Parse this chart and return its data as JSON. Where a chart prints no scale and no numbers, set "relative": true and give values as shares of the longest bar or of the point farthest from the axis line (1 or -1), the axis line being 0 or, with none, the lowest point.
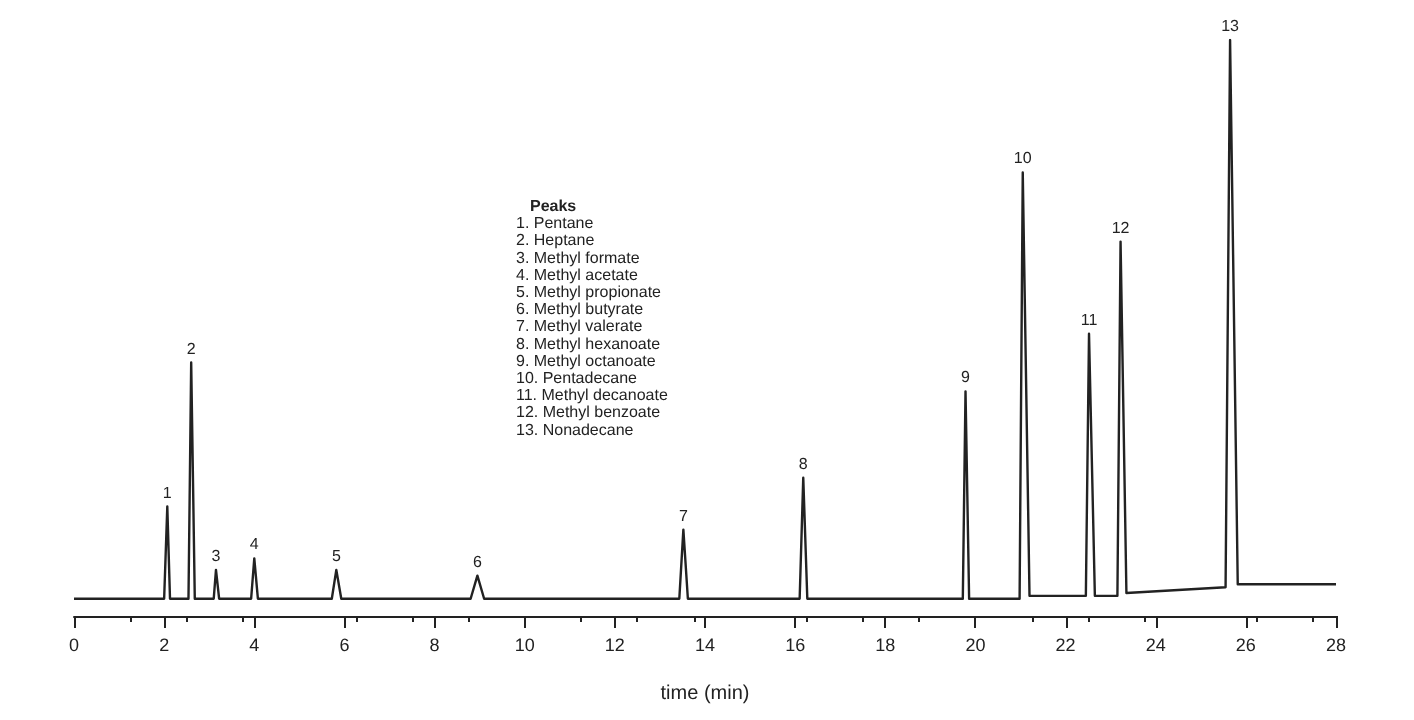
{
  "chart_data": {
    "type": "line",
    "relative": true,
    "xlabel": "time (min)",
    "xlim": [
      0,
      28
    ],
    "xticks": [
      0,
      2,
      4,
      6,
      8,
      10,
      12,
      14,
      16,
      18,
      20,
      22,
      24,
      26,
      28
    ],
    "grid": false,
    "marker": "none",
    "line_style": "solid",
    "series": [
      {
        "color": "#222222",
        "x": [
          0,
          2.0,
          2.07,
          2.13,
          2.54,
          2.6,
          2.68,
          3.1,
          3.15,
          3.22,
          3.93,
          4.0,
          4.08,
          5.72,
          5.82,
          5.93,
          8.8,
          8.95,
          9.1,
          13.43,
          13.52,
          13.62,
          16.1,
          16.18,
          16.27,
          19.72,
          19.78,
          19.86,
          20.98,
          21.05,
          21.2,
          22.45,
          22.52,
          22.65,
          23.15,
          23.22,
          23.35,
          25.55,
          25.65,
          25.82,
          28
        ],
        "values": [
          0.03,
          0.03,
          0.19,
          0.03,
          0.03,
          0.44,
          0.03,
          0.03,
          0.08,
          0.03,
          0.03,
          0.1,
          0.03,
          0.03,
          0.08,
          0.03,
          0.03,
          0.07,
          0.03,
          0.03,
          0.15,
          0.03,
          0.03,
          0.24,
          0.03,
          0.03,
          0.39,
          0.03,
          0.03,
          0.77,
          0.035,
          0.035,
          0.49,
          0.035,
          0.035,
          0.65,
          0.04,
          0.05,
          1,
          0.055,
          0.055
        ]
      }
    ],
    "annotations": [
      {
        "text": "1",
        "x": 2.07,
        "y": 0.19
      },
      {
        "text": "2",
        "x": 2.6,
        "y": 0.44
      },
      {
        "text": "3",
        "x": 3.15,
        "y": 0.08
      },
      {
        "text": "4",
        "x": 4.0,
        "y": 0.1
      },
      {
        "text": "5",
        "x": 5.82,
        "y": 0.08
      },
      {
        "text": "6",
        "x": 8.95,
        "y": 0.07
      },
      {
        "text": "7",
        "x": 13.52,
        "y": 0.15
      },
      {
        "text": "8",
        "x": 16.18,
        "y": 0.24
      },
      {
        "text": "9",
        "x": 19.78,
        "y": 0.39
      },
      {
        "text": "10",
        "x": 21.05,
        "y": 0.77
      },
      {
        "text": "11",
        "x": 22.52,
        "y": 0.49
      },
      {
        "text": "12",
        "x": 23.22,
        "y": 0.65
      },
      {
        "text": "13",
        "x": 25.65,
        "y": 1
      },
      "Peaks",
      "1. Pentane",
      "2. Heptane",
      "3. Methyl formate",
      "4. Methyl acetate",
      "5. Methyl propionate",
      "6. Methyl butyrate",
      "7. Methyl valerate",
      "8. Methyl hexanoate",
      "9. Methyl octanoate",
      "10. Pentadecane",
      "11. Methyl decanoate",
      "12. Methyl benzoate",
      "13. Nonadecane"
    ]
  }
}
